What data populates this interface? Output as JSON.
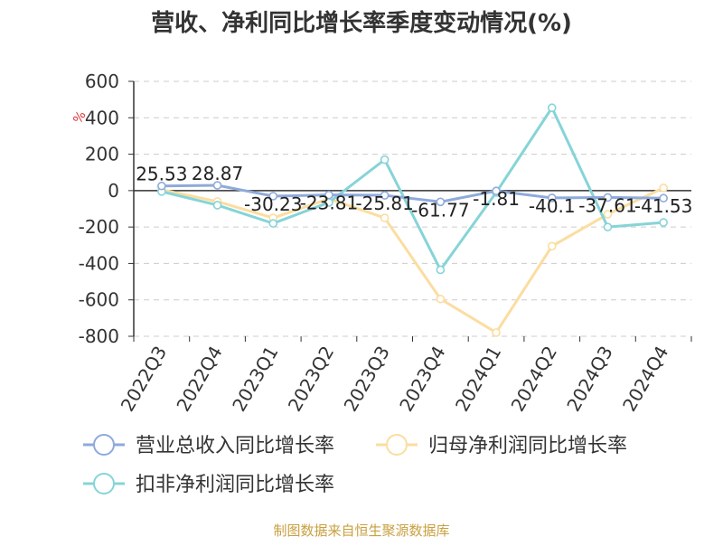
{
  "chart_data": {
    "type": "line",
    "title": "营收、净利同比增长率季度变动情况(%)",
    "ylabel": "%",
    "ylim": [
      -800,
      600
    ],
    "yticks": [
      600,
      400,
      200,
      0,
      -200,
      -400,
      -600,
      -800
    ],
    "grid": true,
    "legend_position": "bottom",
    "categories": [
      "2022Q3",
      "2022Q4",
      "2023Q1",
      "2023Q2",
      "2023Q3",
      "2023Q4",
      "2024Q1",
      "2024Q2",
      "2024Q3",
      "2024Q4"
    ],
    "series": [
      {
        "name": "营业总收入同比增长率",
        "color": "#8eaadb",
        "values": [
          25.53,
          28.87,
          -30.23,
          -23.81,
          -25.81,
          -61.77,
          -1.81,
          -40.1,
          -37.61,
          -41.53
        ],
        "labels": [
          "25.53",
          "28.87",
          "-30.23",
          "-23.81",
          "-25.81",
          "-61.77",
          "-1.81",
          "-40.1",
          "-37.61",
          "-41.53"
        ]
      },
      {
        "name": "归母净利润同比增长率",
        "color": "#fbdda0",
        "values": [
          5,
          -60,
          -150,
          -45,
          -150,
          -595,
          -780,
          -305,
          -130,
          15
        ]
      },
      {
        "name": "扣非净利润同比增长率",
        "color": "#86d4d8",
        "values": [
          -5,
          -80,
          -180,
          -65,
          170,
          -435,
          -10,
          455,
          -200,
          -175
        ]
      }
    ]
  },
  "source": "制图数据来自恒生聚源数据库"
}
